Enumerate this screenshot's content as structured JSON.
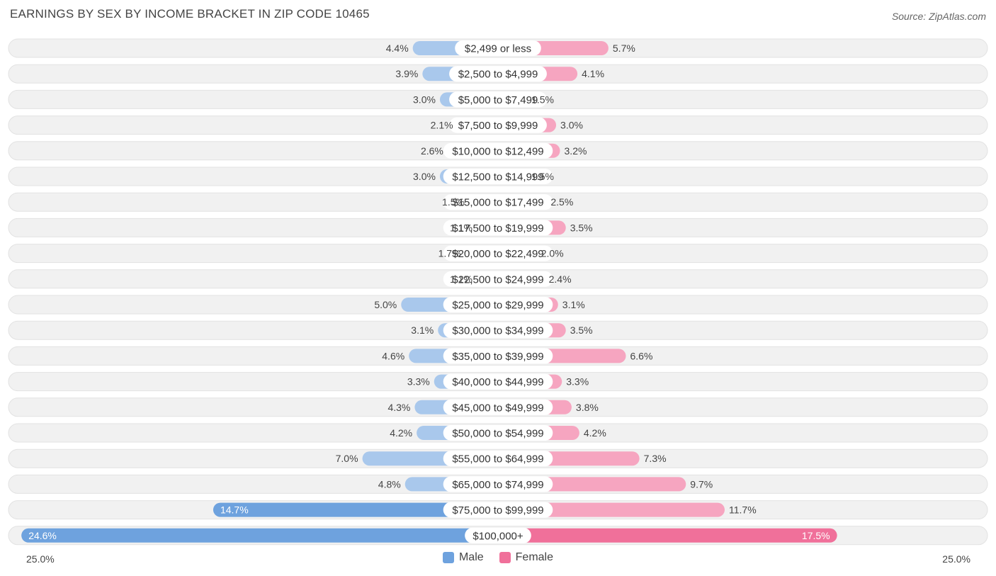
{
  "header": {
    "title": "EARNINGS BY SEX BY INCOME BRACKET IN ZIP CODE 10465",
    "source": "Source: ZipAtlas.com"
  },
  "legend": {
    "male_label": "Male",
    "female_label": "Female"
  },
  "axis": {
    "left_label": "25.0%",
    "right_label": "25.0%"
  },
  "colors": {
    "male": "#a9c8ec",
    "male_strong": "#6ea2de",
    "female": "#f6a5c0",
    "female_strong": "#f0709a",
    "row_bg": "#f1f1f1",
    "row_border": "#e2e2e2"
  },
  "chart_data": {
    "type": "bar",
    "orientation": "horizontal-diverging",
    "title": "EARNINGS BY SEX BY INCOME BRACKET IN ZIP CODE 10465",
    "xlim": [
      -25.0,
      25.0
    ],
    "unit": "%",
    "categories": [
      "$2,499 or less",
      "$2,500 to $4,999",
      "$5,000 to $7,499",
      "$7,500 to $9,999",
      "$10,000 to $12,499",
      "$12,500 to $14,999",
      "$15,000 to $17,499",
      "$17,500 to $19,999",
      "$20,000 to $22,499",
      "$22,500 to $24,999",
      "$25,000 to $29,999",
      "$30,000 to $34,999",
      "$35,000 to $39,999",
      "$40,000 to $44,999",
      "$45,000 to $49,999",
      "$50,000 to $54,999",
      "$55,000 to $64,999",
      "$65,000 to $74,999",
      "$75,000 to $99,999",
      "$100,000+"
    ],
    "series": [
      {
        "name": "Male",
        "values": [
          4.4,
          3.9,
          3.0,
          2.1,
          2.6,
          3.0,
          1.5,
          1.1,
          1.7,
          1.1,
          5.0,
          3.1,
          4.6,
          3.3,
          4.3,
          4.2,
          7.0,
          4.8,
          14.7,
          24.6
        ],
        "labels": [
          "4.4%",
          "3.9%",
          "3.0%",
          "2.1%",
          "2.6%",
          "3.0%",
          "1.5%",
          "1.1%",
          "1.7%",
          "1.1%",
          "5.0%",
          "3.1%",
          "4.6%",
          "3.3%",
          "4.3%",
          "4.2%",
          "7.0%",
          "4.8%",
          "14.7%",
          "24.6%"
        ]
      },
      {
        "name": "Female",
        "values": [
          5.7,
          4.1,
          1.5,
          3.0,
          3.2,
          1.5,
          2.5,
          3.5,
          2.0,
          2.4,
          3.1,
          3.5,
          6.6,
          3.3,
          3.8,
          4.2,
          7.3,
          9.7,
          11.7,
          17.5
        ],
        "labels": [
          "5.7%",
          "4.1%",
          "1.5%",
          "3.0%",
          "3.2%",
          "1.5%",
          "2.5%",
          "3.5%",
          "2.0%",
          "2.4%",
          "3.1%",
          "3.5%",
          "6.6%",
          "3.3%",
          "3.8%",
          "4.2%",
          "7.3%",
          "9.7%",
          "11.7%",
          "17.5%"
        ]
      }
    ]
  }
}
